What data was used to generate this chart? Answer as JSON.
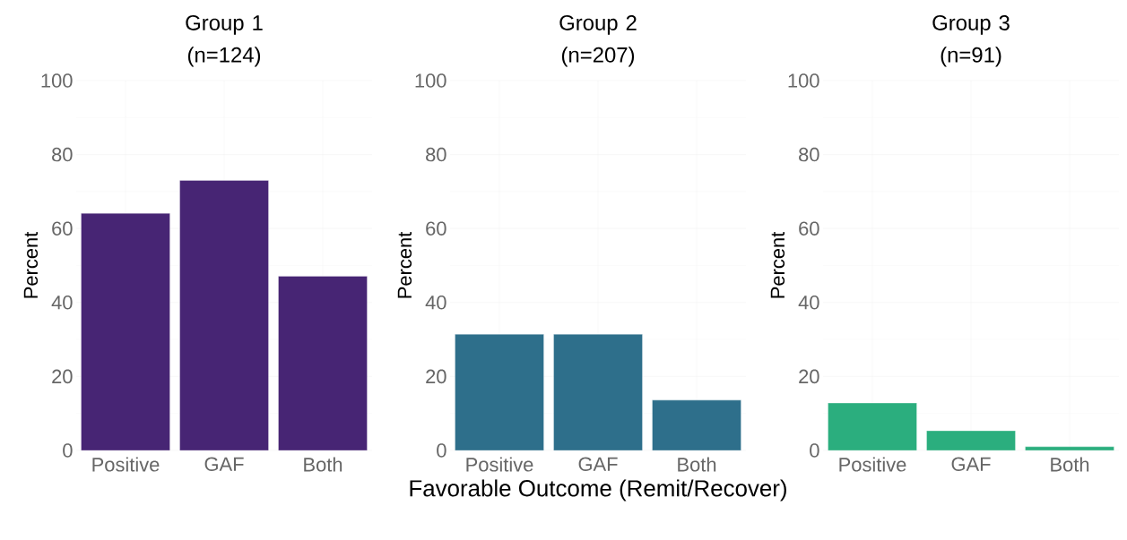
{
  "chart_data": [
    {
      "type": "bar",
      "title": "Group 1 (n=124)",
      "ylabel": "Percent",
      "categories": [
        "Positive",
        "GAF",
        "Both"
      ],
      "values": [
        64.1,
        73.0,
        47.1
      ],
      "color": "#472574",
      "ylim": [
        0,
        100
      ],
      "yticks": [
        0,
        20,
        40,
        60,
        80,
        100
      ],
      "grid": true
    },
    {
      "type": "bar",
      "title": "Group 2 (n=207)",
      "ylabel": "Percent",
      "xlabel": "Favorable Outcome (Remit/Recover)",
      "categories": [
        "Positive",
        "GAF",
        "Both"
      ],
      "values": [
        31.4,
        31.4,
        13.6
      ],
      "color": "#2e6f8b",
      "ylim": [
        0,
        100
      ],
      "yticks": [
        0,
        20,
        40,
        60,
        80,
        100
      ],
      "grid": true
    },
    {
      "type": "bar",
      "title": "Group 3 (n=91)",
      "ylabel": "Percent",
      "categories": [
        "Positive",
        "GAF",
        "Both"
      ],
      "values": [
        12.8,
        5.3,
        1.0
      ],
      "color": "#2bae7e",
      "ylim": [
        0,
        100
      ],
      "yticks": [
        0,
        20,
        40,
        60,
        80,
        100
      ],
      "grid": true
    }
  ]
}
